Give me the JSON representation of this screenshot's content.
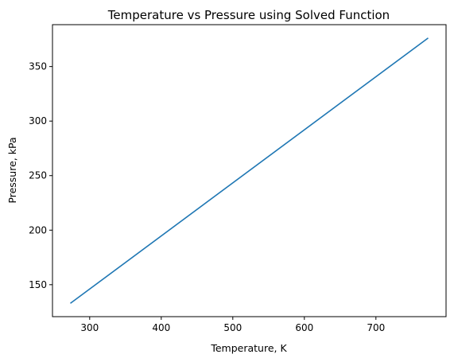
{
  "chart_data": {
    "type": "line",
    "title": "Temperature vs Pressure using Solved Function",
    "xlabel": "Temperature, K",
    "ylabel": "Pressure, kPa",
    "xlim": [
      248,
      798
    ],
    "ylim": [
      120.7,
      388.4
    ],
    "xticks": [
      300,
      400,
      500,
      600,
      700
    ],
    "yticks": [
      150,
      200,
      250,
      300,
      350
    ],
    "grid": false,
    "series": [
      {
        "color": "#1f77b4",
        "x": [
          273,
          773
        ],
        "y": [
          132.9,
          376.2
        ]
      }
    ]
  }
}
